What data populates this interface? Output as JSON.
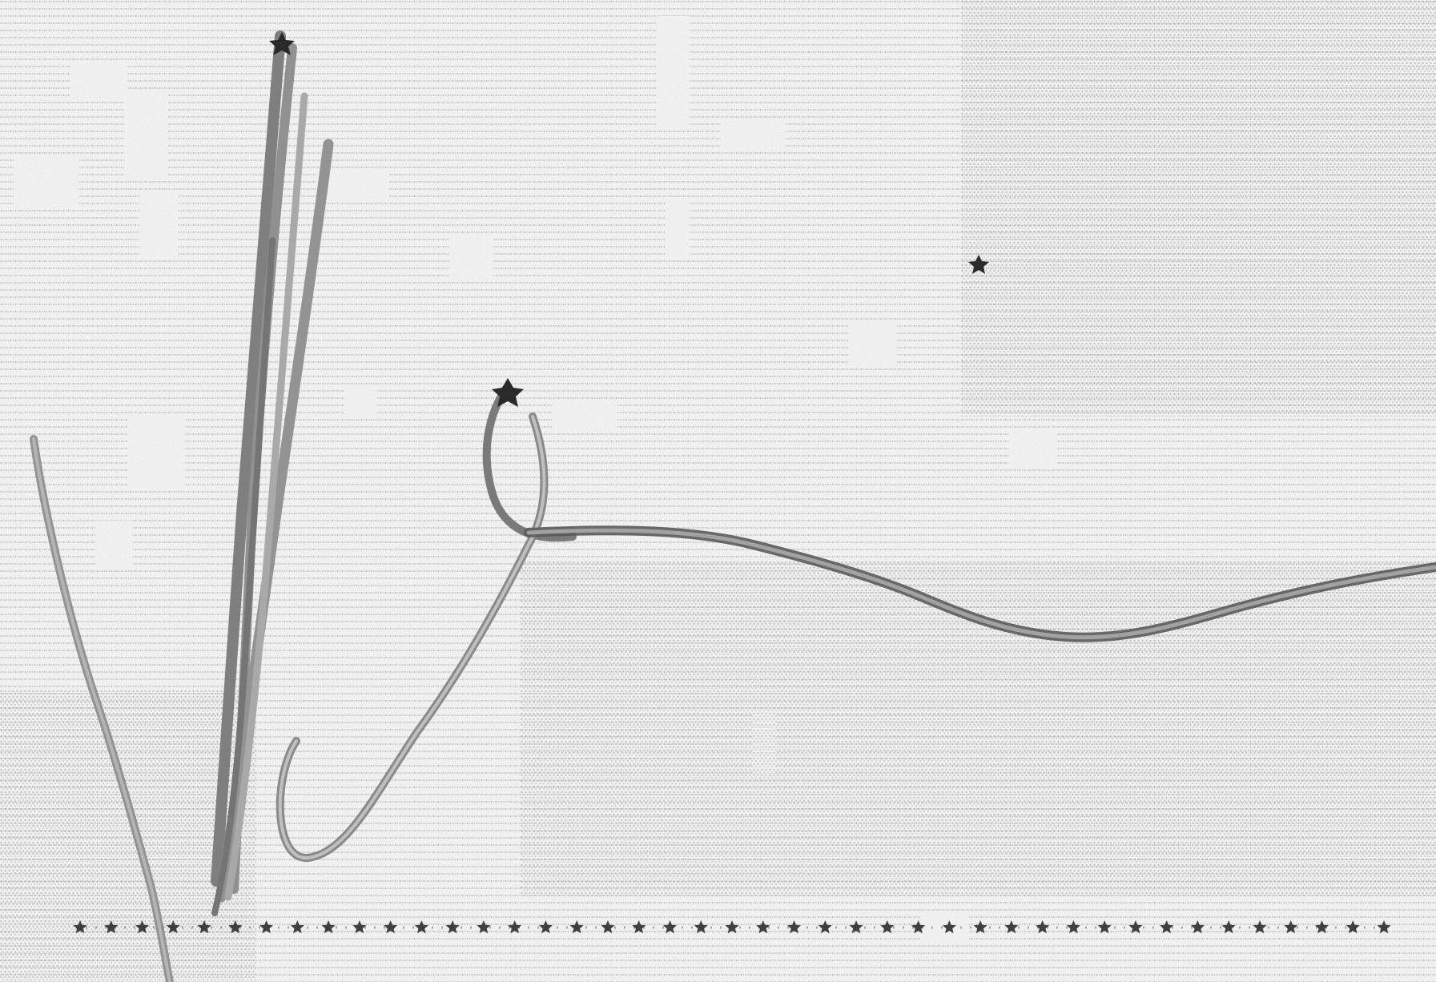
{
  "image": {
    "style": "dithered-halftone-sketch",
    "colors": {
      "background": "#ffffff",
      "dot_light": "#c8c8c8",
      "dot_mid": "#9a9a9a",
      "stroke": "#6f6f6f",
      "stroke_dark": "#3a3a3a",
      "marker": "#222222"
    },
    "elements": {
      "baseline": "dotted-baseline-with-star-markers",
      "strokes": [
        "left-curve",
        "tall-bundle",
        "hook-loop",
        "long-wave"
      ],
      "markers": [
        "star-top",
        "star-hook",
        "star-right"
      ]
    },
    "text": []
  }
}
